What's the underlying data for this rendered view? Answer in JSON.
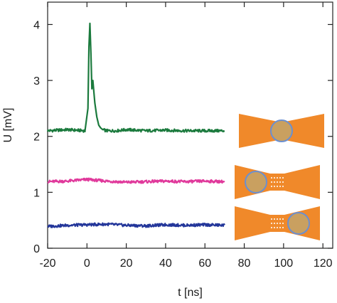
{
  "chart_data": {
    "type": "line",
    "xlabel": "t [ns]",
    "ylabel": "U [mV]",
    "xlim": [
      -20,
      125
    ],
    "ylim": [
      0,
      4.4
    ],
    "xticks": [
      "-20",
      "0",
      "20",
      "40",
      "60",
      "80",
      "100",
      "120"
    ],
    "yticks": [
      "0",
      "1",
      "2",
      "3",
      "4"
    ],
    "grid": false,
    "series": [
      {
        "color": "#1b7a3d",
        "baseline": 2.1,
        "x": [
          -20,
          -10,
          -1,
          0.5,
          1,
          1.5,
          2,
          2.5,
          3,
          4,
          5,
          6,
          7,
          8,
          10,
          15,
          20,
          30,
          40,
          50,
          60,
          70
        ],
        "y": [
          2.1,
          2.12,
          2.1,
          2.5,
          3.6,
          4.02,
          3.5,
          2.85,
          3.0,
          2.6,
          2.35,
          2.2,
          2.15,
          2.12,
          2.1,
          2.1,
          2.12,
          2.1,
          2.11,
          2.1,
          2.1,
          2.1
        ]
      },
      {
        "color": "#e0399b",
        "baseline": 1.19,
        "x": [
          -20,
          -10,
          0,
          10,
          20,
          30,
          40,
          50,
          60,
          70
        ],
        "y": [
          1.19,
          1.2,
          1.23,
          1.2,
          1.18,
          1.19,
          1.2,
          1.19,
          1.2,
          1.19
        ]
      },
      {
        "color": "#23369a",
        "baseline": 0.41,
        "x": [
          -20,
          -10,
          0,
          10,
          20,
          30,
          40,
          50,
          60,
          70
        ],
        "y": [
          0.39,
          0.41,
          0.42,
          0.43,
          0.41,
          0.4,
          0.42,
          0.41,
          0.42,
          0.41
        ]
      }
    ],
    "insets": [
      {
        "bowtie_color": "#f0892a",
        "dot_color": "#c9a060",
        "ring_color": "#6b8fd0",
        "spot": "center"
      },
      {
        "bowtie_color": "#f0892a",
        "dot_color": "#c9a060",
        "ring_color": "#6b8fd0",
        "spot": "left"
      },
      {
        "bowtie_color": "#f0892a",
        "dot_color": "#c9a060",
        "ring_color": "#6b8fd0",
        "spot": "right"
      }
    ]
  }
}
